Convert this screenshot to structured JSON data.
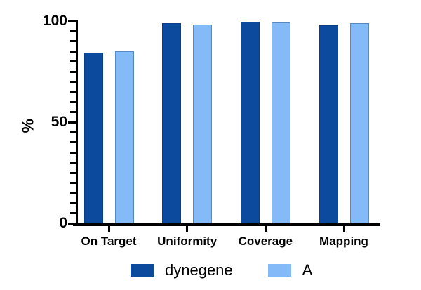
{
  "figure": {
    "background": "#ffffff",
    "text_color": "#000000"
  },
  "chart_data": {
    "type": "bar",
    "title": "",
    "xlabel": "",
    "ylabel": "%",
    "categories": [
      "On Target",
      "Uniformity",
      "Coverage",
      "Mapping"
    ],
    "series": [
      {
        "name": "dynegene",
        "color": "#0c4a9e",
        "values": [
          84.5,
          98.9,
          99.7,
          97.9
        ]
      },
      {
        "name": "A",
        "color": "#84baf7",
        "values": [
          85.0,
          98.3,
          99.2,
          98.9
        ]
      }
    ],
    "ylim": [
      0,
      100
    ],
    "y_major_ticks": [
      0,
      50,
      100
    ],
    "y_minor_step": 5,
    "grid": false,
    "legend_position": "bottom"
  }
}
